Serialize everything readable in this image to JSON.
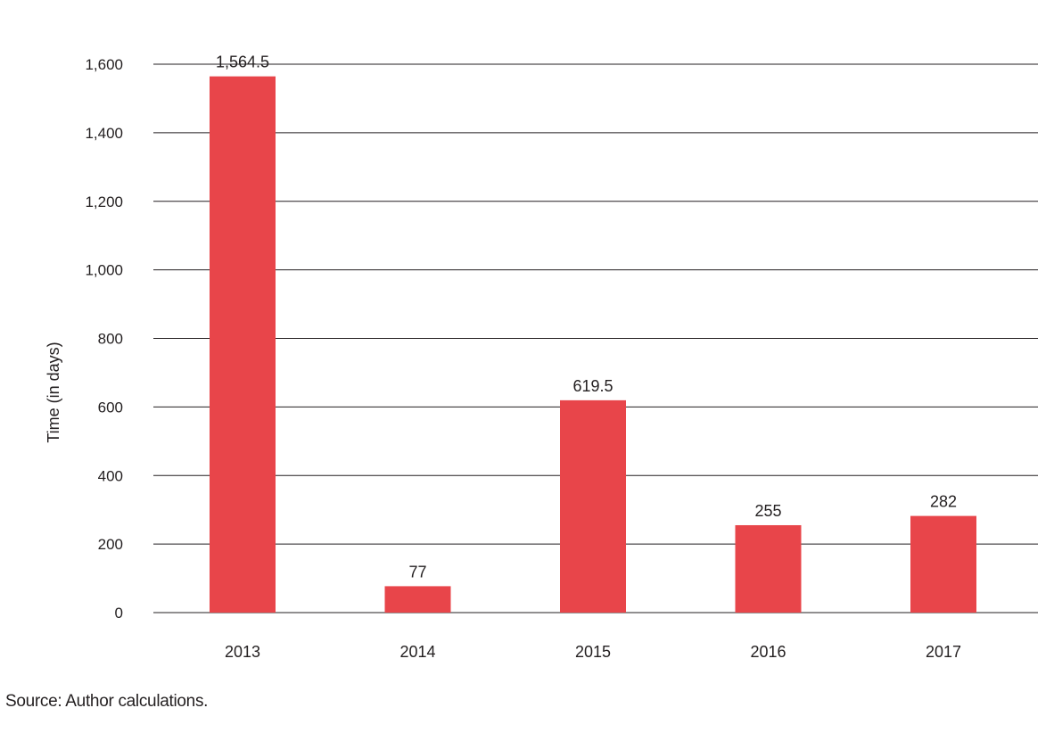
{
  "chart_data": {
    "type": "bar",
    "categories": [
      "2013",
      "2014",
      "2015",
      "2016",
      "2017"
    ],
    "values": [
      1564.5,
      77,
      619.5,
      255,
      282
    ],
    "data_labels": [
      "1,564.5",
      "77",
      "619.5",
      "255",
      "282"
    ],
    "title": "",
    "xlabel": "",
    "ylabel": "Time (in days)",
    "ylim": [
      0,
      1600
    ],
    "yticks": [
      0,
      200,
      400,
      600,
      800,
      1000,
      1200,
      1400,
      1600
    ],
    "ytick_labels": [
      "0",
      "200",
      "400",
      "600",
      "800",
      "1,000",
      "1,200",
      "1,400",
      "1,600"
    ],
    "grid": true,
    "bar_color": "#e8454a",
    "gridline_color": "#231f20"
  },
  "source_note": "Source: Author calculations."
}
